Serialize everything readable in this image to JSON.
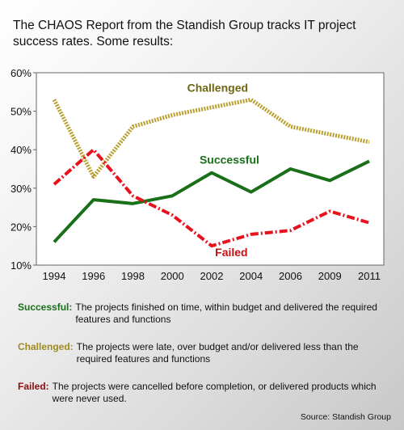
{
  "title": "The CHAOS Report from the Standish Group tracks IT project success rates. Some results:",
  "chart_data": {
    "type": "line",
    "categories": [
      "1994",
      "1996",
      "1998",
      "2000",
      "2002",
      "2004",
      "2006",
      "2009",
      "2011"
    ],
    "ylim": [
      10,
      60
    ],
    "yticks": [
      "10%",
      "20%",
      "30%",
      "40%",
      "50%",
      "60%"
    ],
    "grid": false,
    "series": [
      {
        "name": "Challenged",
        "values": [
          53,
          33,
          46,
          49,
          51,
          53,
          46,
          44,
          42
        ],
        "color": "#b8a030",
        "style": "dotted"
      },
      {
        "name": "Successful",
        "values": [
          16,
          27,
          26,
          28,
          34,
          29,
          35,
          32,
          37
        ],
        "color": "#197019",
        "style": "solid"
      },
      {
        "name": "Failed",
        "values": [
          31,
          40,
          28,
          23,
          15,
          18,
          19,
          24,
          21
        ],
        "color": "#e8121e",
        "style": "dashdot"
      }
    ]
  },
  "legend": [
    {
      "label": "Successful:",
      "color": "#197019",
      "text": "The projects finished on time, within budget and delivered the required features and functions"
    },
    {
      "label": "Challenged:",
      "color": "#9e8a1e",
      "text": "The projects were late, over budget and/or delivered less than the required features and functions"
    },
    {
      "label": "Failed:",
      "color": "#8a0e0e",
      "text": "The projects were cancelled before completion, or delivered products which were never used."
    }
  ],
  "source": "Source: Standish Group"
}
